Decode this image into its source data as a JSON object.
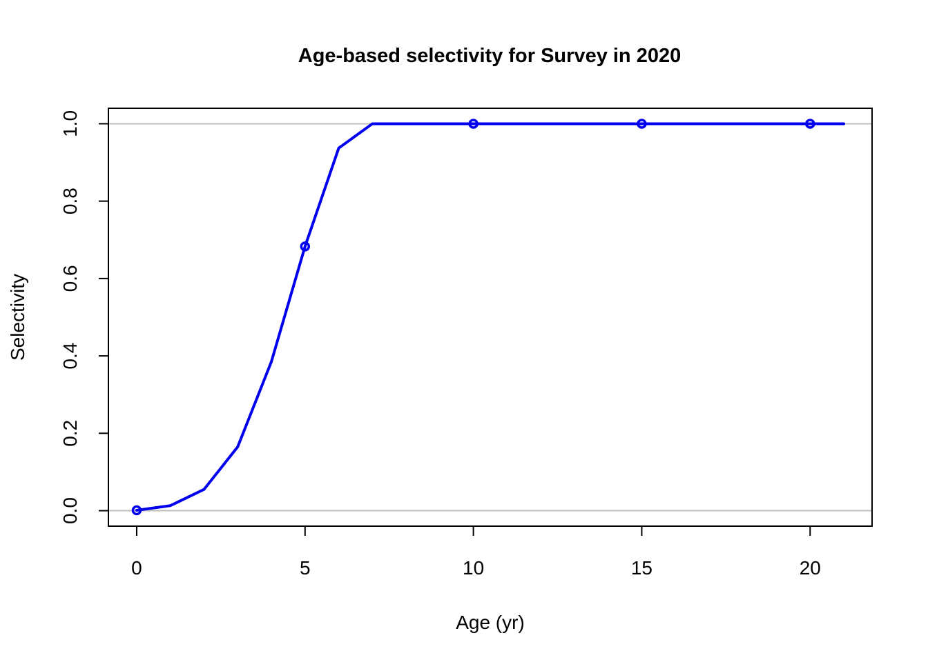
{
  "chart_data": {
    "type": "line",
    "title": "Age-based selectivity for Survey in 2020",
    "xlabel": "Age (yr)",
    "ylabel": "Selectivity",
    "xlim": [
      -0.84,
      21.84
    ],
    "ylim": [
      -0.04,
      1.04
    ],
    "x_ticks": [
      0,
      5,
      10,
      15,
      20
    ],
    "y_ticks": [
      0.0,
      0.2,
      0.4,
      0.6,
      0.8,
      1.0
    ],
    "x_tick_labels": [
      "0",
      "5",
      "10",
      "15",
      "20"
    ],
    "y_tick_labels": [
      "0.0",
      "0.2",
      "0.4",
      "0.6",
      "0.8",
      "1.0"
    ],
    "reference_lines": [
      0,
      1
    ],
    "grid": false,
    "color": "#0000ee",
    "reference_color": "#bebebe",
    "series": [
      {
        "x": [
          0,
          1,
          2,
          3,
          4,
          5,
          6,
          7,
          8,
          9,
          10,
          11,
          12,
          13,
          14,
          15,
          16,
          17,
          18,
          19,
          20,
          21
        ],
        "values": [
          0.001,
          0.013,
          0.055,
          0.165,
          0.385,
          0.683,
          0.937,
          1.0,
          1.0,
          1.0,
          1.0,
          1.0,
          1.0,
          1.0,
          1.0,
          1.0,
          1.0,
          1.0,
          1.0,
          1.0,
          1.0,
          1.0
        ],
        "markers_at": [
          0,
          5,
          10,
          15,
          20
        ]
      }
    ]
  }
}
